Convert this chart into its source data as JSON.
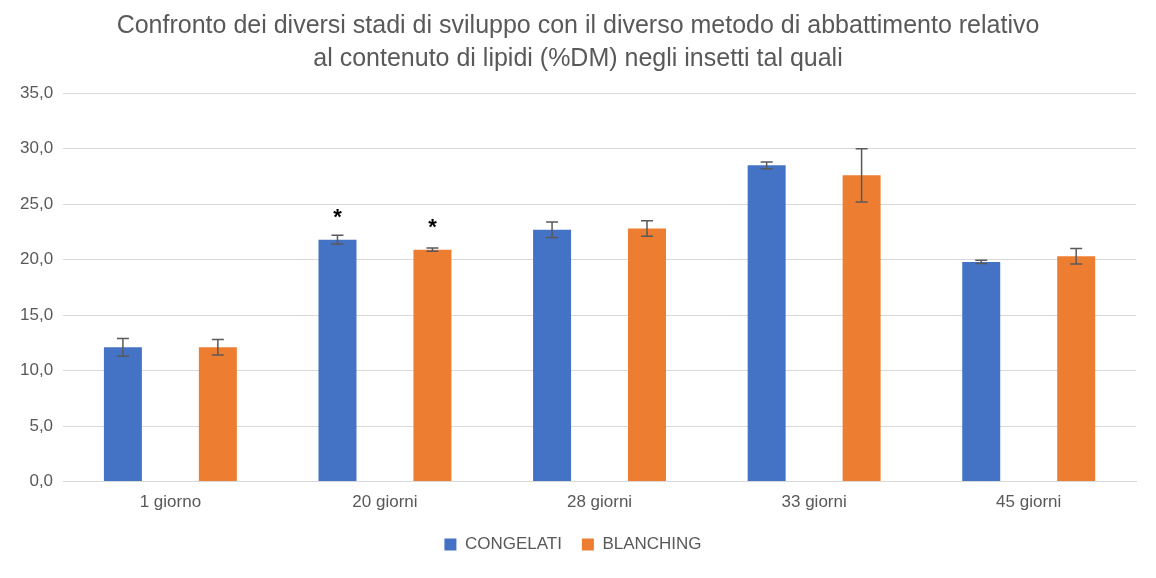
{
  "chart_data": {
    "type": "bar",
    "title": "Confronto dei diversi stadi di sviluppo con il diverso metodo di abbattimento relativo al contenuto di lipidi (%DM) negli insetti tal quali",
    "categories": [
      "1 giorno",
      "20 giorni",
      "28 giorni",
      "33 giorni",
      "45 giorni"
    ],
    "series": [
      {
        "name": "CONGELATI",
        "color": "#4472c4",
        "values": [
          12.1,
          21.8,
          22.7,
          28.5,
          19.8
        ],
        "errors": [
          0.8,
          0.4,
          0.7,
          0.3,
          0.15
        ]
      },
      {
        "name": "BLANCHING",
        "color": "#ed7d31",
        "values": [
          12.1,
          20.9,
          22.8,
          27.6,
          20.3
        ],
        "errors": [
          0.7,
          0.15,
          0.7,
          2.4,
          0.7
        ]
      }
    ],
    "ylim": [
      0,
      35
    ],
    "yticks": [
      {
        "value": 0,
        "label": "0,0"
      },
      {
        "value": 5,
        "label": "5,0"
      },
      {
        "value": 10,
        "label": "10,0"
      },
      {
        "value": 15,
        "label": "15,0"
      },
      {
        "value": 20,
        "label": "20,0"
      },
      {
        "value": 25,
        "label": "25,0"
      },
      {
        "value": 30,
        "label": "30,0"
      },
      {
        "value": 35,
        "label": "35,0"
      }
    ],
    "grid": "y",
    "legend": "bottom",
    "annotations": [
      "*",
      "*"
    ]
  }
}
